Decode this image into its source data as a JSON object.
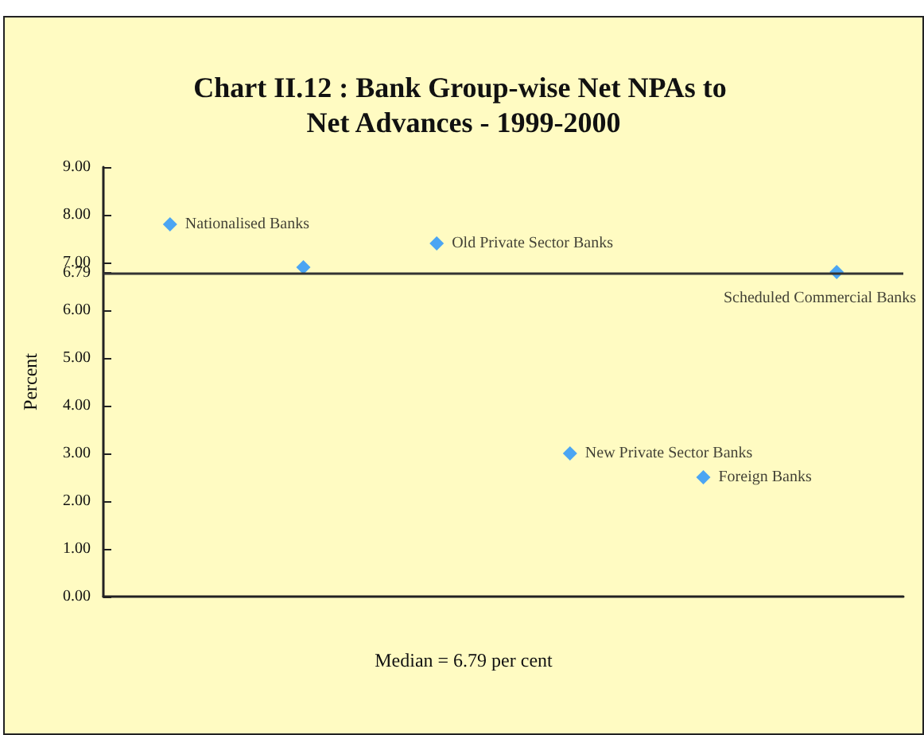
{
  "chart_data": {
    "type": "scatter",
    "title": "Chart II.12 : Bank Group-wise Net NPAs to Net Advances - 1999-2000",
    "ylabel": "Percent",
    "categories": [
      null,
      null,
      null,
      null,
      null,
      null
    ],
    "series": [
      {
        "name": "Nationalised Banks",
        "color": "#1e90ff",
        "values": [
          7.8,
          null,
          null,
          null,
          null,
          null
        ]
      },
      {
        "color": "#1e90ff",
        "values": [
          null,
          6.9,
          null,
          null,
          null,
          null
        ]
      },
      {
        "name": "Old Private Sector Banks",
        "color": "#1e90ff",
        "values": [
          null,
          null,
          7.4,
          null,
          null,
          null
        ]
      },
      {
        "name": "New Private Sector Banks",
        "color": "#1e90ff",
        "values": [
          null,
          null,
          null,
          3.0,
          null,
          null
        ]
      },
      {
        "name": "Foreign Banks",
        "color": "#1e90ff",
        "values": [
          null,
          null,
          null,
          null,
          2.5,
          null
        ]
      },
      {
        "name": "Scheduled Commercial Banks",
        "color": "#1e90ff",
        "values": [
          null,
          null,
          null,
          null,
          null,
          6.8
        ]
      }
    ],
    "ylim": [
      0,
      9
    ],
    "yticks": [
      {
        "value": 0,
        "label": "0.00"
      },
      {
        "value": 1,
        "label": "1.00"
      },
      {
        "value": 2,
        "label": "2.00"
      },
      {
        "value": 3,
        "label": "3.00"
      },
      {
        "value": 4,
        "label": "4.00"
      },
      {
        "value": 5,
        "label": "5.00"
      },
      {
        "value": 6,
        "label": "6.00"
      },
      {
        "value": 6.79,
        "label": "6.79"
      },
      {
        "value": 7,
        "label": "7.00"
      },
      {
        "value": 8,
        "label": "8.00"
      },
      {
        "value": 9,
        "label": "9.00"
      }
    ],
    "ref_lines": [
      {
        "axis": "y",
        "value": 6.79,
        "color": "#333333"
      }
    ],
    "annotations": [
      "Median = 6.79 per cent"
    ],
    "tick_labels": "y",
    "marker": "diamond",
    "grid": false
  }
}
